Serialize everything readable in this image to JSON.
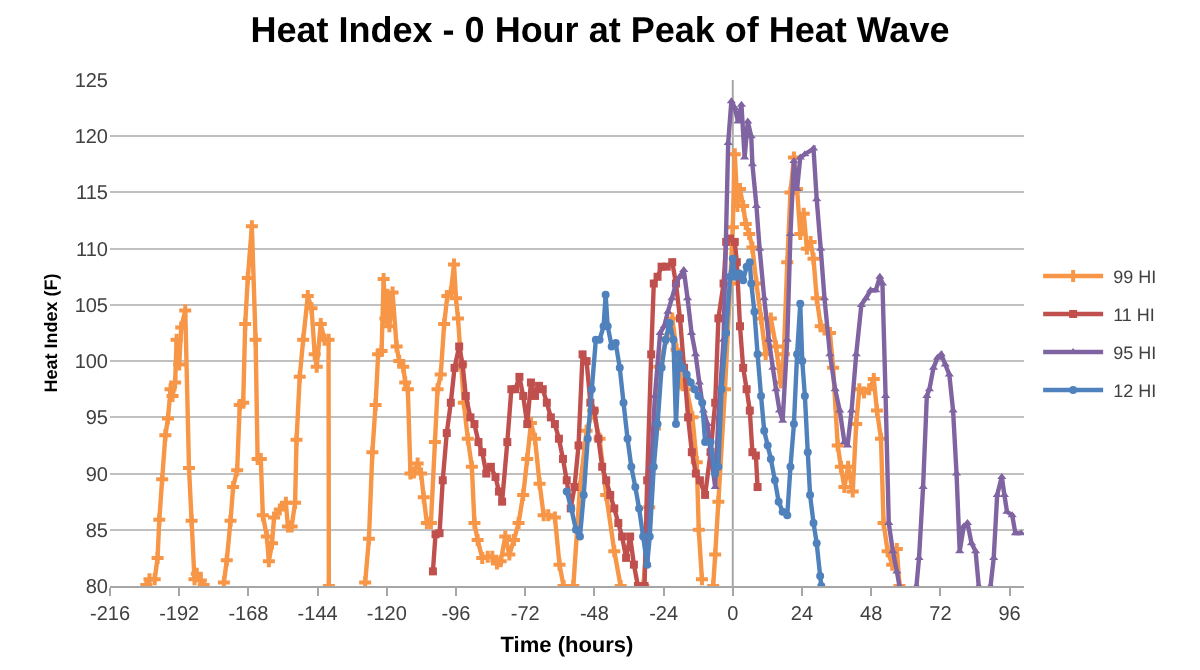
{
  "chart_data": {
    "type": "line",
    "title": "Heat Index - 0 Hour at Peak of Heat Wave",
    "xlabel": "Time (hours)",
    "ylabel": "Heat Index (F)",
    "xlim": [
      -216,
      101
    ],
    "xticks": [
      -216,
      -192,
      -168,
      -144,
      -120,
      -96,
      -72,
      -48,
      -24,
      0,
      24,
      48,
      72,
      96
    ],
    "ylim": [
      80,
      125
    ],
    "yticks": [
      80,
      85,
      90,
      95,
      100,
      105,
      110,
      115,
      120,
      125
    ],
    "grid": "y",
    "legend": "right",
    "line_style": "solid",
    "ref_lines": [
      {
        "axis": "x",
        "value": 0,
        "color": "#a6a6a6"
      }
    ],
    "series": [
      {
        "name": "99 HI",
        "color": "#f79646",
        "marker": "cross",
        "x": [
          -203.4,
          -202.3,
          -200.5,
          -199.5,
          -198.9,
          -197.9,
          -196.8,
          -195.9,
          -195,
          -194.3,
          -193.4,
          -192.9,
          -192,
          -191.3,
          -189.9,
          -188.6,
          -187.7,
          -186.7,
          -185.9,
          -184.5,
          -183.5,
          -180,
          -176.5,
          -175.5,
          -174.2,
          -173.3,
          -171.9,
          -171,
          -169.8,
          -169.1,
          -168.2,
          -166.8,
          -165.5,
          -164.8,
          -163.7,
          -163,
          -161.6,
          -160.9,
          -159.8,
          -159.1,
          -157.1,
          -155,
          -154.3,
          -153,
          -151.8,
          -151.3,
          -150.2,
          -149,
          -147.4,
          -146.1,
          -145,
          -144.3,
          -142.9,
          -141.6,
          -140.2,
          -140.1,
          -134,
          -127.5,
          -126.2,
          -125,
          -123.9,
          -123,
          -121.8,
          -121.1,
          -120.5,
          -119.8,
          -119.1,
          -118,
          -116.6,
          -115.7,
          -114.3,
          -113.6,
          -112.7,
          -111.8,
          -110.6,
          -109.3,
          -108.1,
          -107.2,
          -106.1,
          -104.7,
          -103.3,
          -102.4,
          -101.3,
          -100.1,
          -99,
          -97.8,
          -96.7,
          -96,
          -95.3,
          -94.2,
          -93.3,
          -91.9,
          -90.5,
          -89.6,
          -88.5,
          -86.9,
          -85,
          -83.4,
          -81.8,
          -80.5,
          -78.9,
          -77.5,
          -75.9,
          -74.3,
          -72.7,
          -71.3,
          -70,
          -68.6,
          -67,
          -65.6,
          -64,
          -61.7,
          -60.1,
          -58.7,
          -57,
          -55.3,
          -53,
          -50.7,
          -48.5,
          -46.2,
          -43.9,
          -41.1,
          -38.9,
          -35,
          -31,
          -29,
          -27,
          -25.5,
          -23,
          -21,
          -19.5,
          -18,
          -16,
          -14,
          -12.5,
          -11.8,
          -10.7,
          -8.5,
          -6.8,
          -6.1,
          -5,
          -2.7,
          -0.9,
          0,
          0.7,
          1.6,
          2.5,
          3.6,
          4.5,
          5.7,
          6.8,
          8.2,
          9.8,
          11.4,
          13.2,
          15,
          16.6,
          17.7,
          18.9,
          20,
          21.2,
          22.3,
          23.4,
          24.6,
          25.7,
          27,
          28,
          29.1,
          30.5,
          31.8,
          33.7,
          34.8,
          36.4,
          37.5,
          38.7,
          40,
          41.6,
          42.8,
          43.9,
          45.5,
          47.3,
          48.9,
          50,
          51.4,
          52.3,
          53.7,
          55.3,
          56.9,
          57.8
        ],
        "values": [
          80.1,
          80.6,
          80.6,
          82.5,
          85.9,
          89.5,
          93.4,
          94.9,
          97.5,
          96.9,
          98.1,
          101.9,
          99.7,
          103,
          104.5,
          90.5,
          85.8,
          80.6,
          81.1,
          80.5,
          80.1,
          null,
          80.3,
          82.3,
          85.8,
          88.8,
          90.3,
          96.1,
          96.3,
          103.3,
          107.4,
          112,
          101.9,
          91.3,
          91.3,
          86.3,
          84.4,
          82.2,
          83.8,
          86.1,
          86.8,
          87.4,
          85.3,
          85.3,
          87.4,
          93,
          98.6,
          101.9,
          105.8,
          104.7,
          100.6,
          99.5,
          103.3,
          101.9,
          101.9,
          80,
          null,
          80.3,
          84.2,
          91.9,
          96.1,
          100.6,
          100.9,
          107.3,
          103.8,
          105.9,
          103.1,
          106.1,
          101.3,
          100,
          99.5,
          98.1,
          97.5,
          90,
          90.1,
          90.9,
          90,
          87.9,
          85.6,
          85.6,
          92.8,
          97.5,
          98.8,
          103.3,
          105.8,
          106.1,
          108.6,
          105.6,
          103.8,
          99.7,
          96.3,
          93.1,
          90.6,
          85.6,
          84.1,
          82.5,
          82.6,
          82.6,
          82,
          82.2,
          84.4,
          82.8,
          84.1,
          85.6,
          88.1,
          91.3,
          94.5,
          93.1,
          89.1,
          86.3,
          86.3,
          86.1,
          81.9,
          80,
          null,
          80,
          88.8,
          93.8,
          95.6,
          93.1,
          88.1,
          83.1,
          80,
          null,
          80,
          87,
          94,
          99.5,
          102,
          103.8,
          101,
          98,
          97.5,
          95,
          91,
          85,
          80.6,
          null,
          80,
          82.8,
          87.5,
          97.5,
          106.9,
          111.9,
          118.4,
          113.8,
          115.3,
          113.8,
          112.2,
          111.3,
          110.1,
          106.9,
          103.8,
          100.6,
          103.8,
          101.3,
          98.1,
          100.6,
          108.8,
          115,
          118.1,
          115.3,
          111.3,
          113.1,
          110,
          110.6,
          109.1,
          105.6,
          103.1,
          102.8,
          102.5,
          99.4,
          92.5,
          90.6,
          88.8,
          90.6,
          88.4,
          94.4,
          97.5,
          97.2,
          97.5,
          98.4,
          95.6,
          93.1,
          85.6,
          83.1,
          81.9,
          83.3,
          80
        ]
      },
      {
        "name": "11 HI",
        "color": "#c0504d",
        "marker": "square",
        "x": [
          -104,
          -103.1,
          -101.7,
          -100.6,
          -99.2,
          -97.8,
          -96.5,
          -94.9,
          -93.7,
          -92.6,
          -91,
          -89.6,
          -88.2,
          -86.9,
          -85.5,
          -83.9,
          -82.3,
          -81.1,
          -80,
          -78.2,
          -76.8,
          -75.4,
          -74,
          -72.7,
          -71.3,
          -70,
          -68.6,
          -67.2,
          -65.9,
          -64.5,
          -63.1,
          -61.7,
          -60.3,
          -58.9,
          -57.6,
          -56.2,
          -54.9,
          -53.5,
          -52.1,
          -50.7,
          -49.4,
          -48,
          -46.6,
          -45.3,
          -43.9,
          -42.5,
          -41.1,
          -39.7,
          -38.4,
          -37,
          -35.6,
          -34.3,
          -32.9,
          -31.8,
          -30.6,
          -29.7,
          -28.3,
          -27.4,
          -26.1,
          -24.7,
          -22.9,
          -21,
          -19.7,
          -18.3,
          -16.9,
          -15.5,
          -14.2,
          -12.8,
          -11.4,
          -9.6,
          -7.7,
          -6.1,
          -5,
          -3.2,
          -2.3,
          -0.9,
          0.7,
          1.4,
          2.5,
          3.6,
          4.8,
          5.9,
          6.8,
          8,
          8.6
        ],
        "values": [
          81.3,
          84.6,
          84.7,
          89.4,
          93.6,
          96.3,
          99.4,
          101.3,
          99.7,
          96.9,
          95,
          94.4,
          92.8,
          91.9,
          90,
          90.6,
          89.7,
          88.4,
          87.5,
          92.8,
          97.5,
          97.5,
          98.6,
          96.9,
          94.4,
          98.1,
          96.9,
          97.8,
          97.5,
          96.3,
          95,
          94.4,
          93.1,
          91.3,
          89.4,
          86.9,
          88.8,
          92.5,
          100.6,
          100,
          96.3,
          95.6,
          93.1,
          90.6,
          89.4,
          88.1,
          86.9,
          85.6,
          84.4,
          82.5,
          84.4,
          81.9,
          80,
          null,
          80,
          89.4,
          100.6,
          106.9,
          107.5,
          108.4,
          108.4,
          108.8,
          106.9,
          103.8,
          99.4,
          95,
          91.9,
          90,
          89.4,
          88.1,
          91.9,
          96.3,
          103.8,
          106.9,
          110.6,
          110.9,
          110.6,
          108.8,
          103.1,
          99.4,
          97.5,
          95.6,
          91.9,
          91.6,
          88.8
        ]
      },
      {
        "name": "95 HI",
        "color": "#8064a2",
        "marker": "triangle",
        "x": [
          -29.7,
          -28.3,
          -27,
          -25.2,
          -23.8,
          -22.5,
          -21.1,
          -19.7,
          -18.4,
          -17,
          -15.7,
          -14.3,
          -12.9,
          -11.6,
          -10.2,
          -8.8,
          -7.7,
          -6.1,
          -5,
          -3.2,
          -1.6,
          -0.5,
          0.7,
          1.8,
          3,
          4.1,
          5.2,
          6.4,
          6.8,
          8.2,
          9.3,
          10.9,
          12.5,
          13.9,
          15,
          16.2,
          17.3,
          18.9,
          20,
          21.2,
          22.3,
          23.4,
          25,
          28,
          29.1,
          30.5,
          31.8,
          33.7,
          35.5,
          37.1,
          38.7,
          39.8,
          41.2,
          42.8,
          44.6,
          46.2,
          47.8,
          49.6,
          51,
          51.9,
          53,
          54.1,
          55.5,
          56.9,
          57.8,
          61,
          63.7,
          64.6,
          66,
          67.3,
          68.2,
          69.6,
          71,
          72.3,
          73.7,
          75.1,
          76.4,
          77.6,
          78.7,
          80.1,
          81.4,
          82.8,
          84.2,
          85.3,
          87,
          89.4,
          90.5,
          91.7,
          93.3,
          94.2,
          95.1,
          96.9,
          98,
          100
        ],
        "values": [
          81.9,
          90.6,
          96.9,
          102.5,
          103.1,
          104.4,
          105.6,
          106.9,
          107.5,
          108.1,
          105.6,
          102.5,
          100.6,
          98.1,
          95.6,
          94.4,
          91.9,
          88.8,
          95,
          101.9,
          119.4,
          123.1,
          122.5,
          121.3,
          122.8,
          118.1,
          121.3,
          120,
          117.5,
          113.8,
          110,
          105.6,
          101.9,
          99.4,
          97.5,
          95.6,
          94.7,
          101.9,
          111.3,
          117.8,
          115.3,
          118.1,
          118.4,
          118.9,
          114.4,
          110,
          105.6,
          100.6,
          97.5,
          95.6,
          92.8,
          92.5,
          95.6,
          100.6,
          105,
          105.6,
          106.3,
          106.3,
          107.5,
          106.9,
          96.9,
          85.6,
          83.1,
          81.3,
          80,
          null,
          80,
          82.5,
          88.8,
          96.9,
          97.5,
          99.4,
          100.3,
          100.6,
          99.7,
          98.8,
          95.6,
          90,
          83.1,
          85.3,
          85.6,
          83.8,
          83.1,
          80,
          null,
          80,
          82.5,
          88.1,
          89.7,
          88.1,
          86.6,
          86.3,
          84.7,
          84.7
        ]
      },
      {
        "name": "12 HI",
        "color": "#4f81bd",
        "marker": "circle",
        "x": [
          -57.6,
          -56,
          -54.4,
          -53,
          -51.7,
          -50.3,
          -48.9,
          -47.5,
          -46.2,
          -44.8,
          -44.1,
          -43.4,
          -42,
          -40.6,
          -39.2,
          -37.9,
          -36.5,
          -35.2,
          -33.8,
          -32.5,
          -31.1,
          -29.7,
          -28.8,
          -27.4,
          -26.1,
          -24.7,
          -23.3,
          -21.9,
          -20.6,
          -19.7,
          -18.7,
          -17.4,
          -16,
          -14.6,
          -13.3,
          -11.9,
          -10.6,
          -9.6,
          -7.7,
          -6.1,
          -5,
          -3.9,
          -2.3,
          -0.9,
          0,
          0.9,
          2.3,
          3.6,
          4.8,
          5.9,
          6.4,
          7.5,
          8.6,
          9.8,
          10.9,
          12.1,
          13.2,
          14.6,
          15.9,
          17.3,
          18.9,
          20,
          21.2,
          22.3,
          23.4,
          24.1,
          25,
          26,
          26.8,
          28,
          29.1,
          30.3,
          30.7
        ],
        "values": [
          88.4,
          86.9,
          85,
          84.4,
          88.1,
          93.1,
          97.5,
          101.9,
          101.9,
          103.1,
          105.9,
          103.1,
          101.3,
          101.6,
          99.4,
          96.3,
          93.1,
          90.6,
          88.8,
          86.9,
          84.4,
          81.9,
          84.4,
          90.6,
          94.4,
          99.4,
          101.9,
          103.4,
          101.9,
          94.4,
          100.6,
          99.4,
          98.8,
          98.1,
          97.5,
          96.9,
          96.3,
          92.8,
          92.8,
          90,
          90.6,
          97.5,
          102.5,
          107.5,
          109.1,
          107.5,
          107.8,
          107.2,
          108.4,
          108.8,
          106.9,
          104.4,
          100.6,
          96.9,
          93.8,
          92.5,
          91.3,
          89.4,
          87.5,
          86.6,
          86.3,
          90.6,
          94.4,
          100.6,
          105.1,
          100,
          96.9,
          91.9,
          88.1,
          85.6,
          83.8,
          80.9,
          80
        ]
      }
    ]
  }
}
